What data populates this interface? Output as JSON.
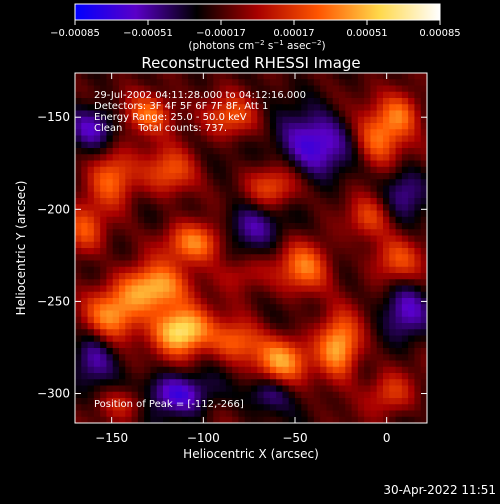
{
  "chart_data": {
    "type": "heatmap",
    "title": "Reconstructed RHESSI Image",
    "xlabel": "Heliocentric X (arcsec)",
    "ylabel": "Heliocentric Y (arcsec)",
    "xlim": [
      -170,
      22
    ],
    "ylim": [
      -316,
      -126
    ],
    "xticks": [
      -150,
      -100,
      -50,
      0
    ],
    "xtick_labels": [
      "−150",
      "−100",
      "−50",
      "0"
    ],
    "yticks": [
      -150,
      -200,
      -250,
      -300
    ],
    "ytick_labels": [
      "−150",
      "−200",
      "−250",
      "−300"
    ],
    "colorbar": {
      "range": [
        -0.00085,
        0.00085
      ],
      "ticks": [
        -0.00085,
        -0.00051,
        -0.00017,
        0.00017,
        0.00051,
        0.00085
      ],
      "tick_labels": [
        "−0.00085",
        "−0.00051",
        "−0.00017",
        "0.00017",
        "0.00051",
        "0.00085"
      ],
      "unit_parts": [
        "(photons cm",
        "−2",
        " s",
        "−1",
        " asec",
        "−2",
        ")"
      ],
      "colormap": [
        "#0000ff",
        "#5a00c8",
        "#000000",
        "#a80000",
        "#ff5500",
        "#ffd84a",
        "#ffffff"
      ]
    },
    "annotations": [
      "29-Jul-2002 04:11:28.000 to 04:12:16.000",
      "Detectors: 3F 4F 5F 6F 7F 8F, Att 1",
      "Energy Range: 25.0 - 50.0 keV",
      "Clean     Total counts: 737."
    ],
    "peak_label": "Position of Peak = [-112,-266]",
    "peak": {
      "x": -112,
      "y": -266
    },
    "bright_sources": [
      {
        "x": -112,
        "y": -266,
        "value": 0.00085,
        "sx": 11,
        "sy": 9
      },
      {
        "x": -127,
        "y": -243,
        "value": 0.00068,
        "sx": 13,
        "sy": 9
      },
      {
        "x": -150,
        "y": -258,
        "value": 0.00055,
        "sx": 11,
        "sy": 10
      },
      {
        "x": -104,
        "y": -218,
        "value": 0.00055,
        "sx": 12,
        "sy": 8
      },
      {
        "x": -45,
        "y": -232,
        "value": 0.0005,
        "sx": 10,
        "sy": 10
      },
      {
        "x": -26,
        "y": -275,
        "value": 0.00068,
        "sx": 8,
        "sy": 12
      },
      {
        "x": -58,
        "y": -282,
        "value": 0.00058,
        "sx": 11,
        "sy": 9
      },
      {
        "x": -82,
        "y": -272,
        "value": 0.00045,
        "sx": 9,
        "sy": 8
      },
      {
        "x": -150,
        "y": -182,
        "value": 0.0005,
        "sx": 9,
        "sy": 11
      },
      {
        "x": -130,
        "y": -148,
        "value": 0.00052,
        "sx": 10,
        "sy": 8
      },
      {
        "x": -118,
        "y": -180,
        "value": 0.00042,
        "sx": 10,
        "sy": 9
      },
      {
        "x": -165,
        "y": -212,
        "value": 0.0004,
        "sx": 8,
        "sy": 10
      },
      {
        "x": -85,
        "y": -150,
        "value": 0.0004,
        "sx": 10,
        "sy": 8
      },
      {
        "x": -62,
        "y": -188,
        "value": 0.00045,
        "sx": 10,
        "sy": 8
      },
      {
        "x": -5,
        "y": -162,
        "value": 0.0005,
        "sx": 9,
        "sy": 11
      },
      {
        "x": 8,
        "y": -148,
        "value": 0.00045,
        "sx": 8,
        "sy": 9
      },
      {
        "x": 5,
        "y": -228,
        "value": 0.0004,
        "sx": 10,
        "sy": 9
      },
      {
        "x": -142,
        "y": -305,
        "value": 0.0003,
        "sx": 9,
        "sy": 6
      },
      {
        "x": 2,
        "y": -300,
        "value": 0.00035,
        "sx": 9,
        "sy": 8
      },
      {
        "x": -10,
        "y": -205,
        "value": 0.00032,
        "sx": 8,
        "sy": 8
      },
      {
        "x": -80,
        "y": -235,
        "value": 0.00025,
        "sx": 10,
        "sy": 7
      }
    ],
    "dim_regions": [
      {
        "x": -40,
        "y": -165,
        "value": -0.0005,
        "sx": 14,
        "sy": 12
      },
      {
        "x": -115,
        "y": -300,
        "value": -0.00045,
        "sx": 14,
        "sy": 8
      },
      {
        "x": -160,
        "y": -155,
        "value": -0.0004,
        "sx": 10,
        "sy": 9
      },
      {
        "x": -75,
        "y": -210,
        "value": -0.00035,
        "sx": 12,
        "sy": 10
      },
      {
        "x": 10,
        "y": -255,
        "value": -0.00035,
        "sx": 9,
        "sy": 12
      },
      {
        "x": -65,
        "y": -300,
        "value": -0.0003,
        "sx": 9,
        "sy": 7
      },
      {
        "x": -160,
        "y": -280,
        "value": -0.0003,
        "sx": 8,
        "sy": 12
      },
      {
        "x": 10,
        "y": -190,
        "value": -0.0003,
        "sx": 8,
        "sy": 10
      }
    ],
    "grid": false
  },
  "footer": {
    "timestamp": "30-Apr-2022 11:51"
  }
}
